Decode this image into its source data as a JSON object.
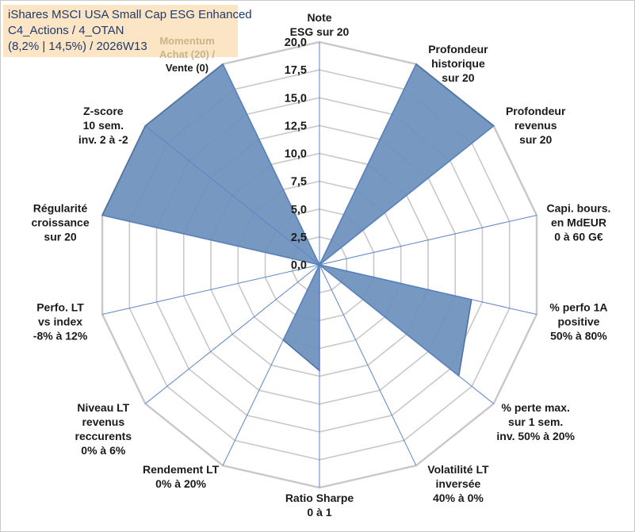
{
  "chart_data": {
    "type": "radar",
    "title_lines": [
      "iShares MSCI USA Small Cap ESG Enhanced",
      "C4_Actions / 4_OTAN",
      "(8,2% | 14,5%) / 2026W13"
    ],
    "rmax": 20,
    "ticks": [
      "0,0",
      "2,5",
      "5,0",
      "7,5",
      "10,0",
      "12,5",
      "15,0",
      "17,5",
      "20,0"
    ],
    "grid_levels": [
      2.5,
      5,
      7.5,
      10,
      12.5,
      15,
      17.5,
      20
    ],
    "axes": [
      {
        "label": [
          "Note",
          "ESG sur 20"
        ],
        "value": 0
      },
      {
        "label": [
          "Profondeur",
          "historique",
          "sur 20"
        ],
        "value": 20
      },
      {
        "label": [
          "Profondeur",
          "revenus",
          "sur 20"
        ],
        "value": 20
      },
      {
        "label": [
          "Capi. bours.",
          "en MdEUR",
          "0 à 60 G€"
        ],
        "value": 0
      },
      {
        "label": [
          "% perfo 1A",
          "positive",
          "50% à 80%"
        ],
        "value": 14
      },
      {
        "label": [
          "% perte max.",
          "sur 1 sem.",
          "inv. 50% à 20%"
        ],
        "value": 16
      },
      {
        "label": [
          "Volatilité LT",
          "inversée",
          "40% à 0%"
        ],
        "value": 0
      },
      {
        "label": [
          "Ratio Sharpe",
          "0 à 1"
        ],
        "value": 9.5
      },
      {
        "label": [
          "Rendement LT",
          "0% à 20%"
        ],
        "value": 7.5
      },
      {
        "label": [
          "Niveau LT",
          "revenus",
          "reccurents",
          "0% à 6%"
        ],
        "value": 0
      },
      {
        "label": [
          "Perfo. LT",
          "vs index",
          "-8% à 12%"
        ],
        "value": 0
      },
      {
        "label": [
          "Régularité",
          "croissance",
          "sur 20"
        ],
        "value": 20
      },
      {
        "label": [
          "Z-score",
          "10 sem.",
          "inv. 2 à -2"
        ],
        "value": 20
      },
      {
        "label": [
          "Momentum",
          "Achat (20) /",
          "Vente (0)"
        ],
        "value": 20
      }
    ],
    "colors": {
      "fill": "#6b8fbc",
      "stroke": "#4a6fa5",
      "spoke": "#5b86c5",
      "grid": "#c8c8c8",
      "text": "#1a1a1a"
    }
  }
}
